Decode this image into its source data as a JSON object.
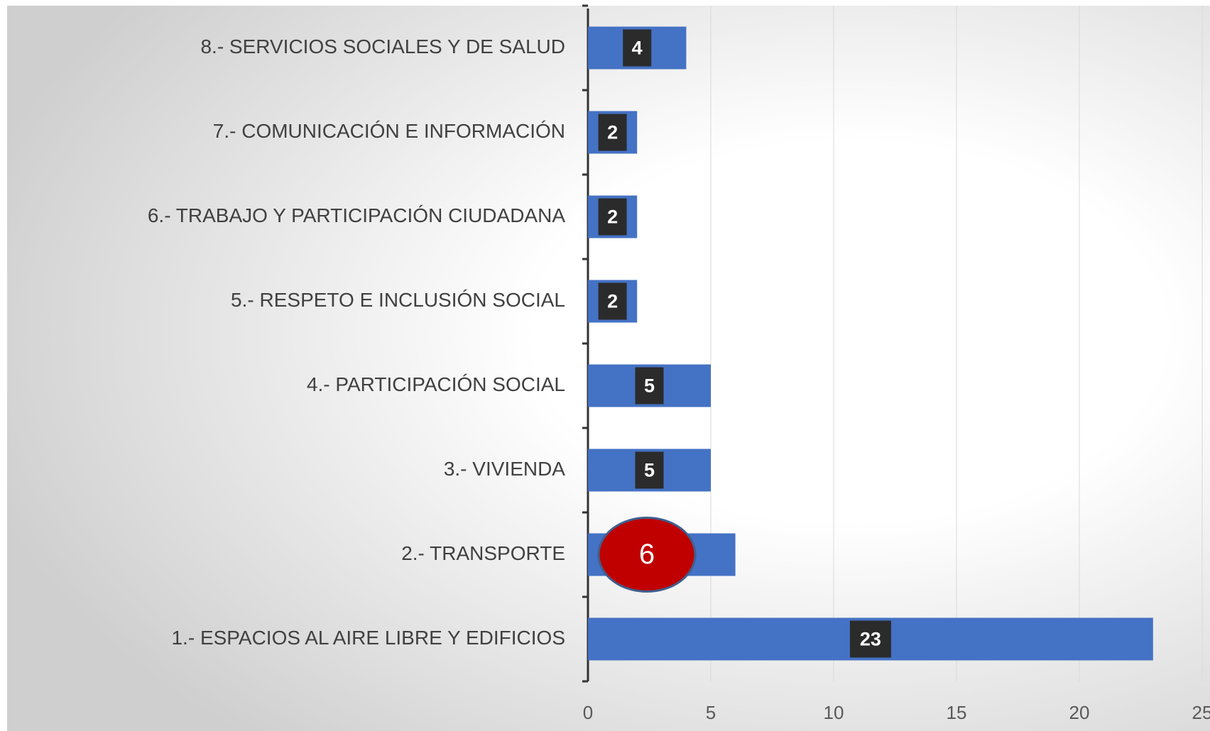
{
  "chart_data": {
    "type": "bar",
    "orientation": "horizontal",
    "categories": [
      "1.- ESPACIOS AL AIRE LIBRE Y EDIFICIOS",
      "2.- TRANSPORTE",
      "3.- VIVIENDA",
      "4.- PARTICIPACIÓN SOCIAL",
      "5.- RESPETO E INCLUSIÓN SOCIAL",
      "6.- TRABAJO Y PARTICIPACIÓN CIUDADANA",
      "7.- COMUNICACIÓN E INFORMACIÓN",
      "8.- SERVICIOS SOCIALES Y DE SALUD"
    ],
    "values": [
      23,
      6,
      5,
      5,
      2,
      2,
      2,
      4
    ],
    "color": "#4472c4",
    "label_colors": [
      "#2b2b2b",
      "#c00000",
      "#2b2b2b",
      "#2b2b2b",
      "#2b2b2b",
      "#2b2b2b",
      "#2b2b2b",
      "#2b2b2b"
    ],
    "xlim": [
      0,
      25
    ],
    "xticks": [
      0,
      5,
      10,
      15,
      20,
      25
    ],
    "grid": true
  }
}
